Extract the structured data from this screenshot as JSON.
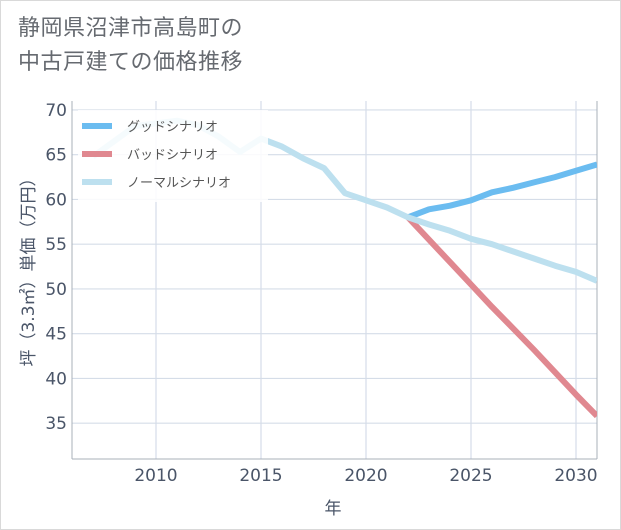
{
  "title_line1": "静岡県沼津市高島町の",
  "title_line2": "中古戸建ての価格推移",
  "chart_data": {
    "type": "line",
    "title": "静岡県沼津市高島町の中古戸建ての価格推移",
    "xlabel": "年",
    "ylabel": "坪（3.3㎡）単価（万円）",
    "xlim": [
      2006,
      2031
    ],
    "ylim": [
      31,
      71
    ],
    "xticks": [
      2010,
      2015,
      2020,
      2025,
      2030
    ],
    "yticks": [
      35,
      40,
      45,
      50,
      55,
      60,
      65,
      70
    ],
    "grid": true,
    "legend_position": "top-left",
    "series": [
      {
        "name": "グッドシナリオ",
        "color": "#6bbcf0",
        "x": [
          2022,
          2023,
          2024,
          2025,
          2026,
          2027,
          2028,
          2029,
          2030,
          2031
        ],
        "values": [
          58.0,
          58.9,
          59.3,
          59.9,
          60.8,
          61.3,
          61.9,
          62.5,
          63.2,
          63.9
        ]
      },
      {
        "name": "バッドシナリオ",
        "color": "#e08890",
        "x": [
          2022,
          2023,
          2024,
          2025,
          2026,
          2027,
          2028,
          2029,
          2030,
          2031
        ],
        "values": [
          58.0,
          55.5,
          53.0,
          50.5,
          48.0,
          45.6,
          43.2,
          40.7,
          38.2,
          35.8
        ]
      },
      {
        "name": "ノーマルシナリオ",
        "color": "#bde0ef",
        "x": [
          2007,
          2008,
          2009,
          2010,
          2011,
          2012,
          2013,
          2014,
          2015,
          2016,
          2017,
          2018,
          2019,
          2020,
          2021,
          2022,
          2023,
          2024,
          2025,
          2026,
          2027,
          2028,
          2029,
          2030,
          2031
        ],
        "values": [
          64.8,
          66.5,
          68.2,
          68.5,
          68.8,
          68.3,
          67.0,
          65.3,
          66.8,
          65.9,
          64.6,
          63.5,
          60.7,
          59.9,
          59.1,
          58.0,
          57.2,
          56.5,
          55.6,
          55.0,
          54.2,
          53.4,
          52.6,
          51.9,
          50.9
        ]
      }
    ]
  }
}
